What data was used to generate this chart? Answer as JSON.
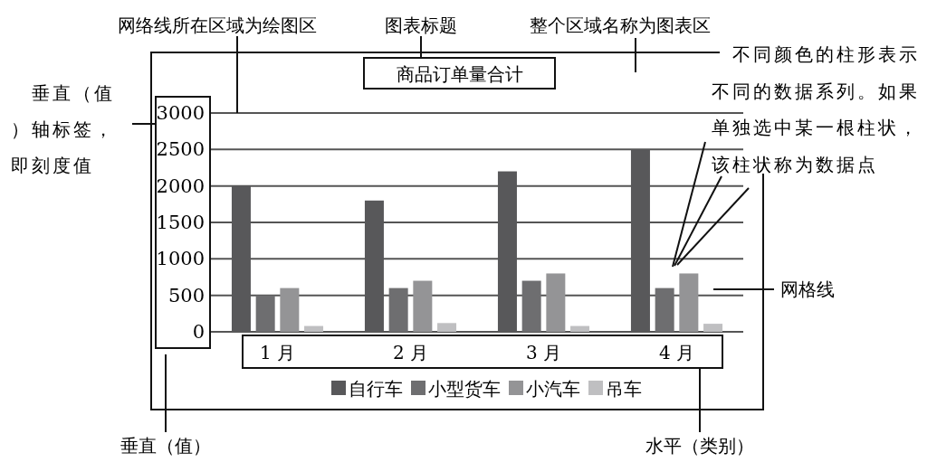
{
  "chart_data": {
    "type": "bar",
    "title": "商品订单量合计",
    "categories": [
      "1 月",
      "2 月",
      "3 月",
      "4 月"
    ],
    "series": [
      {
        "name": "自行车",
        "color": "#58585a",
        "values": [
          2000,
          1800,
          2200,
          2500
        ]
      },
      {
        "name": "小型货车",
        "color": "#6e6e70",
        "values": [
          500,
          600,
          700,
          600
        ]
      },
      {
        "name": "小汽车",
        "color": "#949496",
        "values": [
          600,
          700,
          800,
          800
        ]
      },
      {
        "name": "吊车",
        "color": "#bfbfc1",
        "values": [
          80,
          120,
          80,
          110
        ]
      }
    ],
    "ylim": [
      0,
      3000
    ],
    "yticks": [
      0,
      500,
      1000,
      1500,
      2000,
      2500,
      3000
    ],
    "grid": "y",
    "legend": "bottom",
    "annotations": [
      "网络线所在区域为绘图区",
      "图表标题",
      "整个区域名称为图表区",
      "不同颜色的柱形表示不同的数据系列。如果单独选中某一根柱状，该柱状称为数据点",
      "垂直（值）轴标签，即刻度值",
      "网格线",
      "垂直（值）",
      "水平（类别）"
    ]
  }
}
